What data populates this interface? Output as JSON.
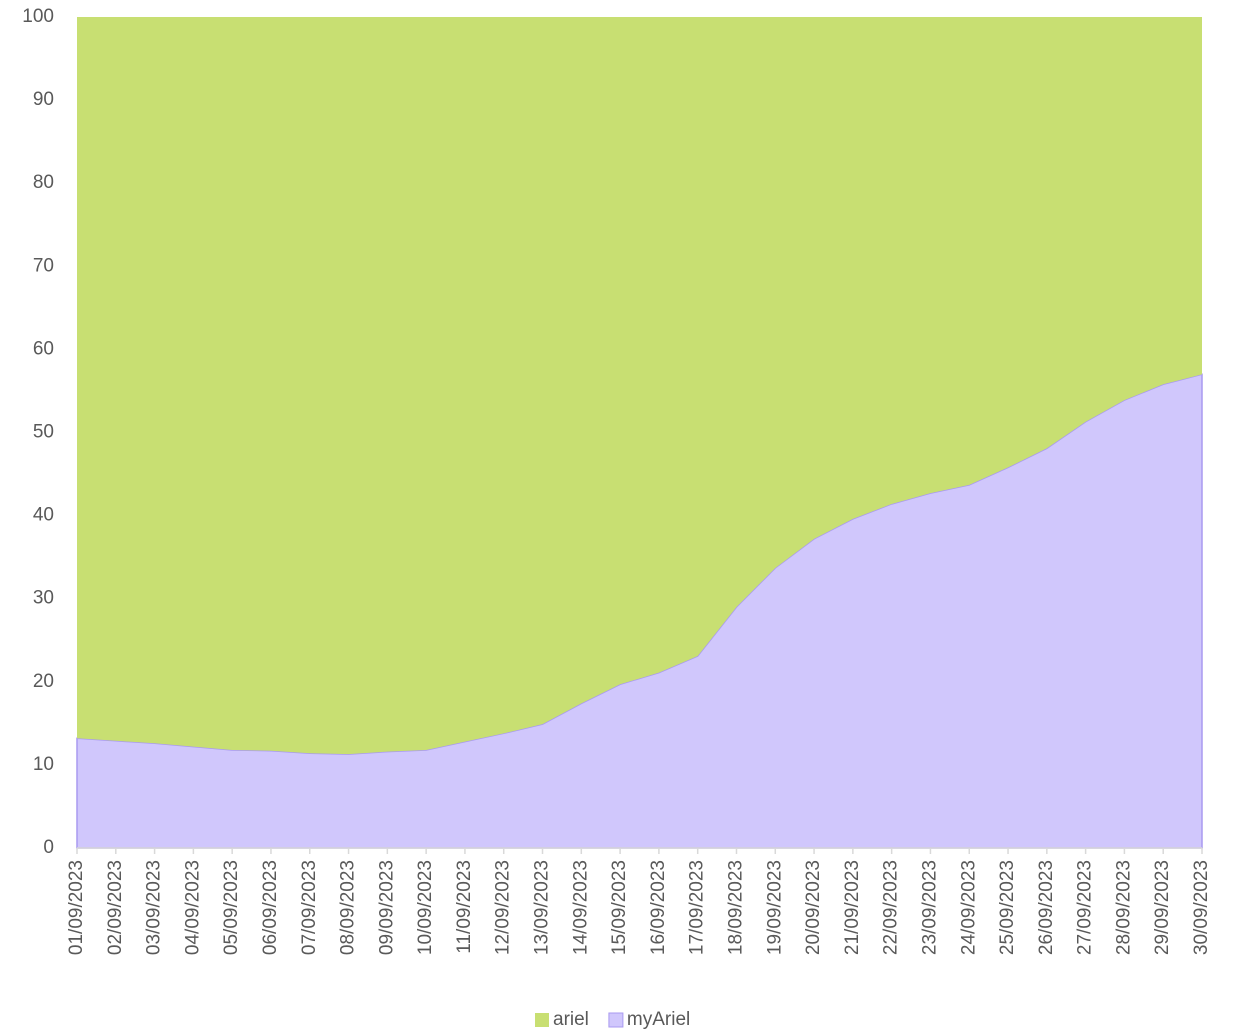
{
  "chart_data": {
    "type": "stacked_area_100",
    "categories": [
      "01/09/2023",
      "02/09/2023",
      "03/09/2023",
      "04/09/2023",
      "05/09/2023",
      "06/09/2023",
      "07/09/2023",
      "08/09/2023",
      "09/09/2023",
      "10/09/2023",
      "11/09/2023",
      "12/09/2023",
      "13/09/2023",
      "14/09/2023",
      "15/09/2023",
      "16/09/2023",
      "17/09/2023",
      "18/09/2023",
      "19/09/2023",
      "20/09/2023",
      "21/09/2023",
      "22/09/2023",
      "23/09/2023",
      "24/09/2023",
      "25/09/2023",
      "26/09/2023",
      "27/09/2023",
      "28/09/2023",
      "29/09/2023",
      "30/09/2023"
    ],
    "series": [
      {
        "name": "ariel",
        "color": "#c8df72",
        "values": [
          86.8,
          87.1,
          87.4,
          87.8,
          88.2,
          88.3,
          88.6,
          88.7,
          88.4,
          88.2,
          87.2,
          86.2,
          85.1,
          82.6,
          80.3,
          78.9,
          76.9,
          71.0,
          66.3,
          62.8,
          60.4,
          58.6,
          57.3,
          56.3,
          54.2,
          51.9,
          48.7,
          46.1,
          44.2,
          43.0
        ]
      },
      {
        "name": "myAriel",
        "color": "#d0c7fc",
        "values": [
          13.2,
          12.9,
          12.6,
          12.2,
          11.8,
          11.7,
          11.4,
          11.3,
          11.6,
          11.8,
          12.8,
          13.8,
          14.9,
          17.4,
          19.7,
          21.1,
          23.1,
          29.0,
          33.7,
          37.2,
          39.6,
          41.4,
          42.7,
          43.7,
          45.8,
          48.1,
          51.3,
          53.9,
          55.8,
          57.0
        ]
      }
    ],
    "ylim": [
      0,
      100
    ],
    "yticks": [
      0,
      10,
      20,
      30,
      40,
      50,
      60,
      70,
      80,
      90,
      100
    ],
    "legend": "bottom"
  }
}
